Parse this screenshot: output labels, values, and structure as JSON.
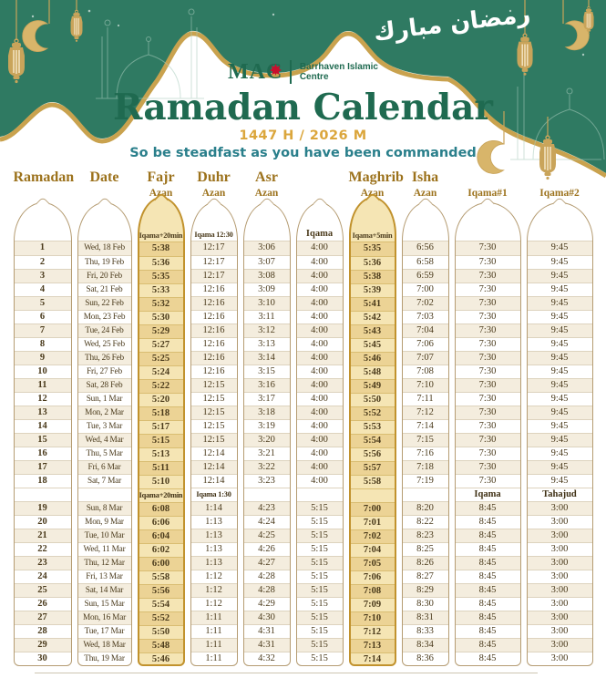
{
  "brand": {
    "acronym": "MAC",
    "org_line1": "Barrhaven Islamic",
    "org_line2": "Centre"
  },
  "header": {
    "title": "Ramadan Calendar",
    "year": "1447 H / 2026 M",
    "quote": "So be steadfast as you have been commanded",
    "calligraphy": "رمضان مبارك"
  },
  "colors": {
    "green": "#2F7A62",
    "gold_ribbon": "#C9A24E",
    "title_green": "#1F6A50",
    "year_gold": "#DBA63C",
    "quote_teal": "#2A7F8B",
    "column_header_text": "#9C721C",
    "cell_text": "#4A3A1B",
    "tower_border": "#B59C72",
    "gold_tower_bg": "#F5E5B4",
    "gold_tower_border": "#C1922D",
    "stripe_cream": "#F4EDDE",
    "maple_leaf_red": "#C8102E"
  },
  "table": {
    "columns": [
      {
        "key": "day",
        "title": "Ramadan",
        "subtitle": "",
        "dome_label": "",
        "mid_label": "",
        "highlight": false
      },
      {
        "key": "date",
        "title": "Date",
        "subtitle": "",
        "dome_label": "",
        "mid_label": "",
        "highlight": false
      },
      {
        "key": "fajr",
        "title": "Fajr",
        "subtitle": "Azan",
        "dome_label": "Iqama+20min",
        "mid_label": "Iqama+20min",
        "highlight": true
      },
      {
        "key": "duhr",
        "title": "Duhr",
        "subtitle": "Azan",
        "dome_label": "Iqama 12:30",
        "mid_label": "Iqama 1:30",
        "highlight": false
      },
      {
        "key": "asr",
        "title": "Asr",
        "subtitle": "Azan",
        "dome_label": "",
        "mid_label": "",
        "highlight": false
      },
      {
        "key": "asr_iqama",
        "title": "",
        "subtitle": "",
        "dome_label": "Iqama",
        "mid_label": "",
        "highlight": false
      },
      {
        "key": "maghrib",
        "title": "Maghrib",
        "subtitle": "Azan",
        "dome_label": "Iqama+5min",
        "mid_label": "",
        "highlight": true
      },
      {
        "key": "isha",
        "title": "Isha",
        "subtitle": "Azan",
        "dome_label": "",
        "mid_label": "",
        "highlight": false
      },
      {
        "key": "iqama1",
        "title": "",
        "subtitle": "Iqama#1",
        "dome_label": "",
        "mid_label": "Iqama",
        "highlight": false
      },
      {
        "key": "iqama2",
        "title": "",
        "subtitle": "Iqama#2",
        "dome_label": "",
        "mid_label": "Tahajud",
        "highlight": false
      }
    ],
    "rows_first_half": [
      [
        "1",
        "Wed, 18 Feb",
        "5:38",
        "12:17",
        "3:06",
        "4:00",
        "5:35",
        "6:56",
        "7:30",
        "9:45"
      ],
      [
        "2",
        "Thu, 19 Feb",
        "5:36",
        "12:17",
        "3:07",
        "4:00",
        "5:36",
        "6:58",
        "7:30",
        "9:45"
      ],
      [
        "3",
        "Fri, 20 Feb",
        "5:35",
        "12:17",
        "3:08",
        "4:00",
        "5:38",
        "6:59",
        "7:30",
        "9:45"
      ],
      [
        "4",
        "Sat, 21 Feb",
        "5:33",
        "12:16",
        "3:09",
        "4:00",
        "5:39",
        "7:00",
        "7:30",
        "9:45"
      ],
      [
        "5",
        "Sun, 22 Feb",
        "5:32",
        "12:16",
        "3:10",
        "4:00",
        "5:41",
        "7:02",
        "7:30",
        "9:45"
      ],
      [
        "6",
        "Mon, 23 Feb",
        "5:30",
        "12:16",
        "3:11",
        "4:00",
        "5:42",
        "7:03",
        "7:30",
        "9:45"
      ],
      [
        "7",
        "Tue, 24 Feb",
        "5:29",
        "12:16",
        "3:12",
        "4:00",
        "5:43",
        "7:04",
        "7:30",
        "9:45"
      ],
      [
        "8",
        "Wed, 25 Feb",
        "5:27",
        "12:16",
        "3:13",
        "4:00",
        "5:45",
        "7:06",
        "7:30",
        "9:45"
      ],
      [
        "9",
        "Thu, 26 Feb",
        "5:25",
        "12:16",
        "3:14",
        "4:00",
        "5:46",
        "7:07",
        "7:30",
        "9:45"
      ],
      [
        "10",
        "Fri, 27 Feb",
        "5:24",
        "12:16",
        "3:15",
        "4:00",
        "5:48",
        "7:08",
        "7:30",
        "9:45"
      ],
      [
        "11",
        "Sat, 28 Feb",
        "5:22",
        "12:15",
        "3:16",
        "4:00",
        "5:49",
        "7:10",
        "7:30",
        "9:45"
      ],
      [
        "12",
        "Sun, 1 Mar",
        "5:20",
        "12:15",
        "3:17",
        "4:00",
        "5:50",
        "7:11",
        "7:30",
        "9:45"
      ],
      [
        "13",
        "Mon, 2 Mar",
        "5:18",
        "12:15",
        "3:18",
        "4:00",
        "5:52",
        "7:12",
        "7:30",
        "9:45"
      ],
      [
        "14",
        "Tue, 3 Mar",
        "5:17",
        "12:15",
        "3:19",
        "4:00",
        "5:53",
        "7:14",
        "7:30",
        "9:45"
      ],
      [
        "15",
        "Wed, 4 Mar",
        "5:15",
        "12:15",
        "3:20",
        "4:00",
        "5:54",
        "7:15",
        "7:30",
        "9:45"
      ],
      [
        "16",
        "Thu, 5 Mar",
        "5:13",
        "12:14",
        "3:21",
        "4:00",
        "5:56",
        "7:16",
        "7:30",
        "9:45"
      ],
      [
        "17",
        "Fri, 6 Mar",
        "5:11",
        "12:14",
        "3:22",
        "4:00",
        "5:57",
        "7:18",
        "7:30",
        "9:45"
      ],
      [
        "18",
        "Sat, 7 Mar",
        "5:10",
        "12:14",
        "3:23",
        "4:00",
        "5:58",
        "7:19",
        "7:30",
        "9:45"
      ]
    ],
    "rows_second_half": [
      [
        "19",
        "Sun, 8 Mar",
        "6:08",
        "1:14",
        "4:23",
        "5:15",
        "7:00",
        "8:20",
        "8:45",
        "3:00"
      ],
      [
        "20",
        "Mon, 9 Mar",
        "6:06",
        "1:13",
        "4:24",
        "5:15",
        "7:01",
        "8:22",
        "8:45",
        "3:00"
      ],
      [
        "21",
        "Tue, 10 Mar",
        "6:04",
        "1:13",
        "4:25",
        "5:15",
        "7:02",
        "8:23",
        "8:45",
        "3:00"
      ],
      [
        "22",
        "Wed, 11 Mar",
        "6:02",
        "1:13",
        "4:26",
        "5:15",
        "7:04",
        "8:25",
        "8:45",
        "3:00"
      ],
      [
        "23",
        "Thu, 12 Mar",
        "6:00",
        "1:13",
        "4:27",
        "5:15",
        "7:05",
        "8:26",
        "8:45",
        "3:00"
      ],
      [
        "24",
        "Fri, 13 Mar",
        "5:58",
        "1:12",
        "4:28",
        "5:15",
        "7:06",
        "8:27",
        "8:45",
        "3:00"
      ],
      [
        "25",
        "Sat, 14 Mar",
        "5:56",
        "1:12",
        "4:28",
        "5:15",
        "7:08",
        "8:29",
        "8:45",
        "3:00"
      ],
      [
        "26",
        "Sun, 15 Mar",
        "5:54",
        "1:12",
        "4:29",
        "5:15",
        "7:09",
        "8:30",
        "8:45",
        "3:00"
      ],
      [
        "27",
        "Mon, 16 Mar",
        "5:52",
        "1:11",
        "4:30",
        "5:15",
        "7:10",
        "8:31",
        "8:45",
        "3:00"
      ],
      [
        "28",
        "Tue, 17 Mar",
        "5:50",
        "1:11",
        "4:31",
        "5:15",
        "7:12",
        "8:33",
        "8:45",
        "3:00"
      ],
      [
        "29",
        "Wed, 18 Mar",
        "5:48",
        "1:11",
        "4:31",
        "5:15",
        "7:13",
        "8:34",
        "8:45",
        "3:00"
      ],
      [
        "30",
        "Thu, 19 Mar",
        "5:46",
        "1:11",
        "4:32",
        "5:15",
        "7:14",
        "8:36",
        "8:45",
        "3:00"
      ]
    ]
  }
}
